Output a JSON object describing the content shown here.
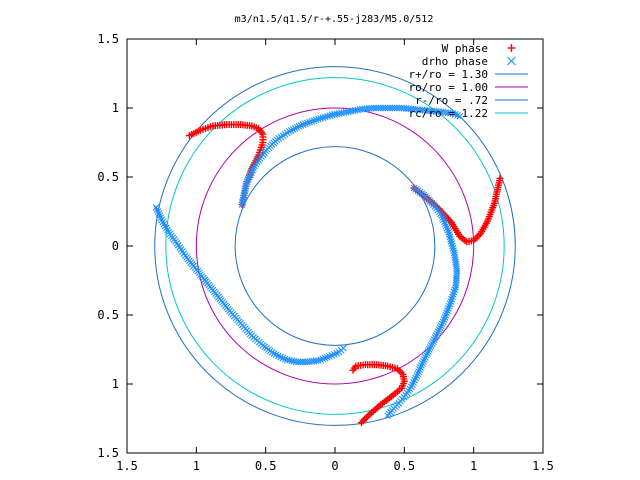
{
  "chart_data": {
    "type": "scatter",
    "title": "m3/n1.5/q1.5/r-+.55-j283/M5.0/512",
    "xlabel": "",
    "ylabel": "",
    "xlim": [
      -1.5,
      1.5
    ],
    "ylim": [
      -1.5,
      1.5
    ],
    "grid": false,
    "legend_position": "top-right",
    "x_ticks": [
      -1.5,
      -1,
      -0.5,
      0,
      0.5,
      1,
      1.5
    ],
    "x_tick_labels": [
      "1.5",
      "1",
      "0.5",
      "0",
      "0.5",
      "1",
      "1.5"
    ],
    "y_ticks": [
      1.5,
      1,
      0.5,
      0,
      -0.5,
      -1,
      -1.5
    ],
    "y_tick_labels": [
      "1.5",
      "1",
      "0.5",
      "0",
      "0.5",
      "1",
      "1.5"
    ],
    "series": [
      {
        "name": "W phase",
        "kind": "points",
        "marker": "+",
        "color": "#ff0000",
        "x": [
          -1.05,
          -0.97,
          -0.88,
          -0.78,
          -0.68,
          -0.6,
          -0.55,
          -0.52,
          -0.52,
          -0.55,
          -0.6,
          -0.64,
          -0.67,
          0.57,
          0.66,
          0.75,
          0.84,
          0.9,
          0.95,
          1.0,
          1.05,
          1.1,
          1.15,
          1.19,
          0.19,
          0.25,
          0.33,
          0.42,
          0.48,
          0.5,
          0.49,
          0.45,
          0.38,
          0.3,
          0.22,
          0.15,
          0.13
        ],
        "y": [
          0.8,
          0.84,
          0.87,
          0.88,
          0.88,
          0.87,
          0.85,
          0.81,
          0.75,
          0.66,
          0.56,
          0.45,
          0.3,
          0.42,
          0.35,
          0.27,
          0.17,
          0.07,
          0.03,
          0.04,
          0.09,
          0.18,
          0.31,
          0.49,
          -1.28,
          -1.22,
          -1.15,
          -1.08,
          -1.03,
          -0.98,
          -0.93,
          -0.89,
          -0.87,
          -0.86,
          -0.86,
          -0.87,
          -0.9
        ]
      },
      {
        "name": "drho phase",
        "kind": "points",
        "marker": "x",
        "color": "#1e90ff",
        "x": [
          -0.67,
          -0.64,
          -0.58,
          -0.5,
          -0.42,
          -0.33,
          -0.23,
          -0.12,
          -0.02,
          0.08,
          0.18,
          0.28,
          0.38,
          0.48,
          0.58,
          0.68,
          0.78,
          0.85,
          0.9,
          -1.29,
          -1.25,
          -1.2,
          -1.14,
          -1.08,
          -1.0,
          -0.92,
          -0.84,
          -0.76,
          -0.68,
          -0.6,
          -0.52,
          -0.44,
          -0.36,
          -0.28,
          -0.2,
          -0.12,
          -0.04,
          0.03,
          0.06,
          0.57,
          0.64,
          0.71,
          0.77,
          0.82,
          0.86,
          0.88,
          0.87,
          0.83,
          0.78,
          0.73,
          0.68,
          0.63,
          0.59,
          0.55,
          0.51,
          0.46,
          0.41,
          0.38
        ],
        "y": [
          0.3,
          0.45,
          0.58,
          0.69,
          0.77,
          0.83,
          0.88,
          0.92,
          0.95,
          0.97,
          0.99,
          1.0,
          1.0,
          1.0,
          0.99,
          0.98,
          0.97,
          0.96,
          0.94,
          0.28,
          0.19,
          0.1,
          0.02,
          -0.07,
          -0.17,
          -0.27,
          -0.37,
          -0.47,
          -0.56,
          -0.65,
          -0.72,
          -0.78,
          -0.82,
          -0.84,
          -0.84,
          -0.83,
          -0.8,
          -0.77,
          -0.74,
          0.42,
          0.37,
          0.3,
          0.22,
          0.1,
          -0.05,
          -0.18,
          -0.3,
          -0.42,
          -0.55,
          -0.65,
          -0.75,
          -0.85,
          -0.94,
          -1.02,
          -1.08,
          -1.14,
          -1.19,
          -1.23
        ]
      },
      {
        "name": "r+/ro = 1.30",
        "kind": "circle",
        "radius": 1.3,
        "color": "#1f6fc6"
      },
      {
        "name": "ro/ro = 1.00",
        "kind": "circle",
        "radius": 1.0,
        "color": "#b000b0"
      },
      {
        "name": "r-/ro = .72",
        "kind": "circle",
        "radius": 0.72,
        "color": "#1f6fc6"
      },
      {
        "name": "rc/ro = 1.22",
        "kind": "circle",
        "radius": 1.22,
        "color": "#00c8c8"
      }
    ]
  }
}
